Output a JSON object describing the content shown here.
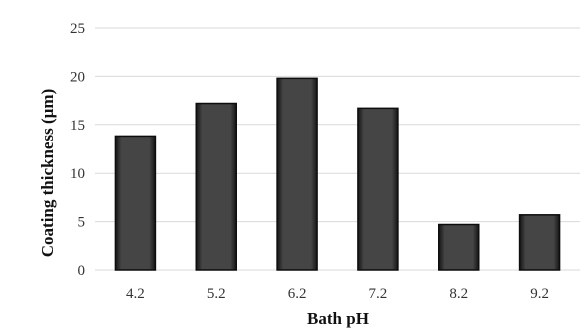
{
  "chart_data": {
    "type": "bar",
    "title": "",
    "xlabel": "Bath pH",
    "ylabel": "Coating thickness (µm)",
    "categories": [
      "4.2",
      "5.2",
      "6.2",
      "7.2",
      "8.2",
      "9.2"
    ],
    "values": [
      13.8,
      17.2,
      19.8,
      16.7,
      4.7,
      5.7
    ],
    "ylim": [
      0,
      25
    ],
    "yticks": [
      "0",
      "5",
      "10",
      "15",
      "20",
      "25"
    ],
    "grid": true,
    "legend": "none",
    "colors": {
      "bar": "#3a3a3a",
      "grid": "#d9d9d9"
    }
  }
}
